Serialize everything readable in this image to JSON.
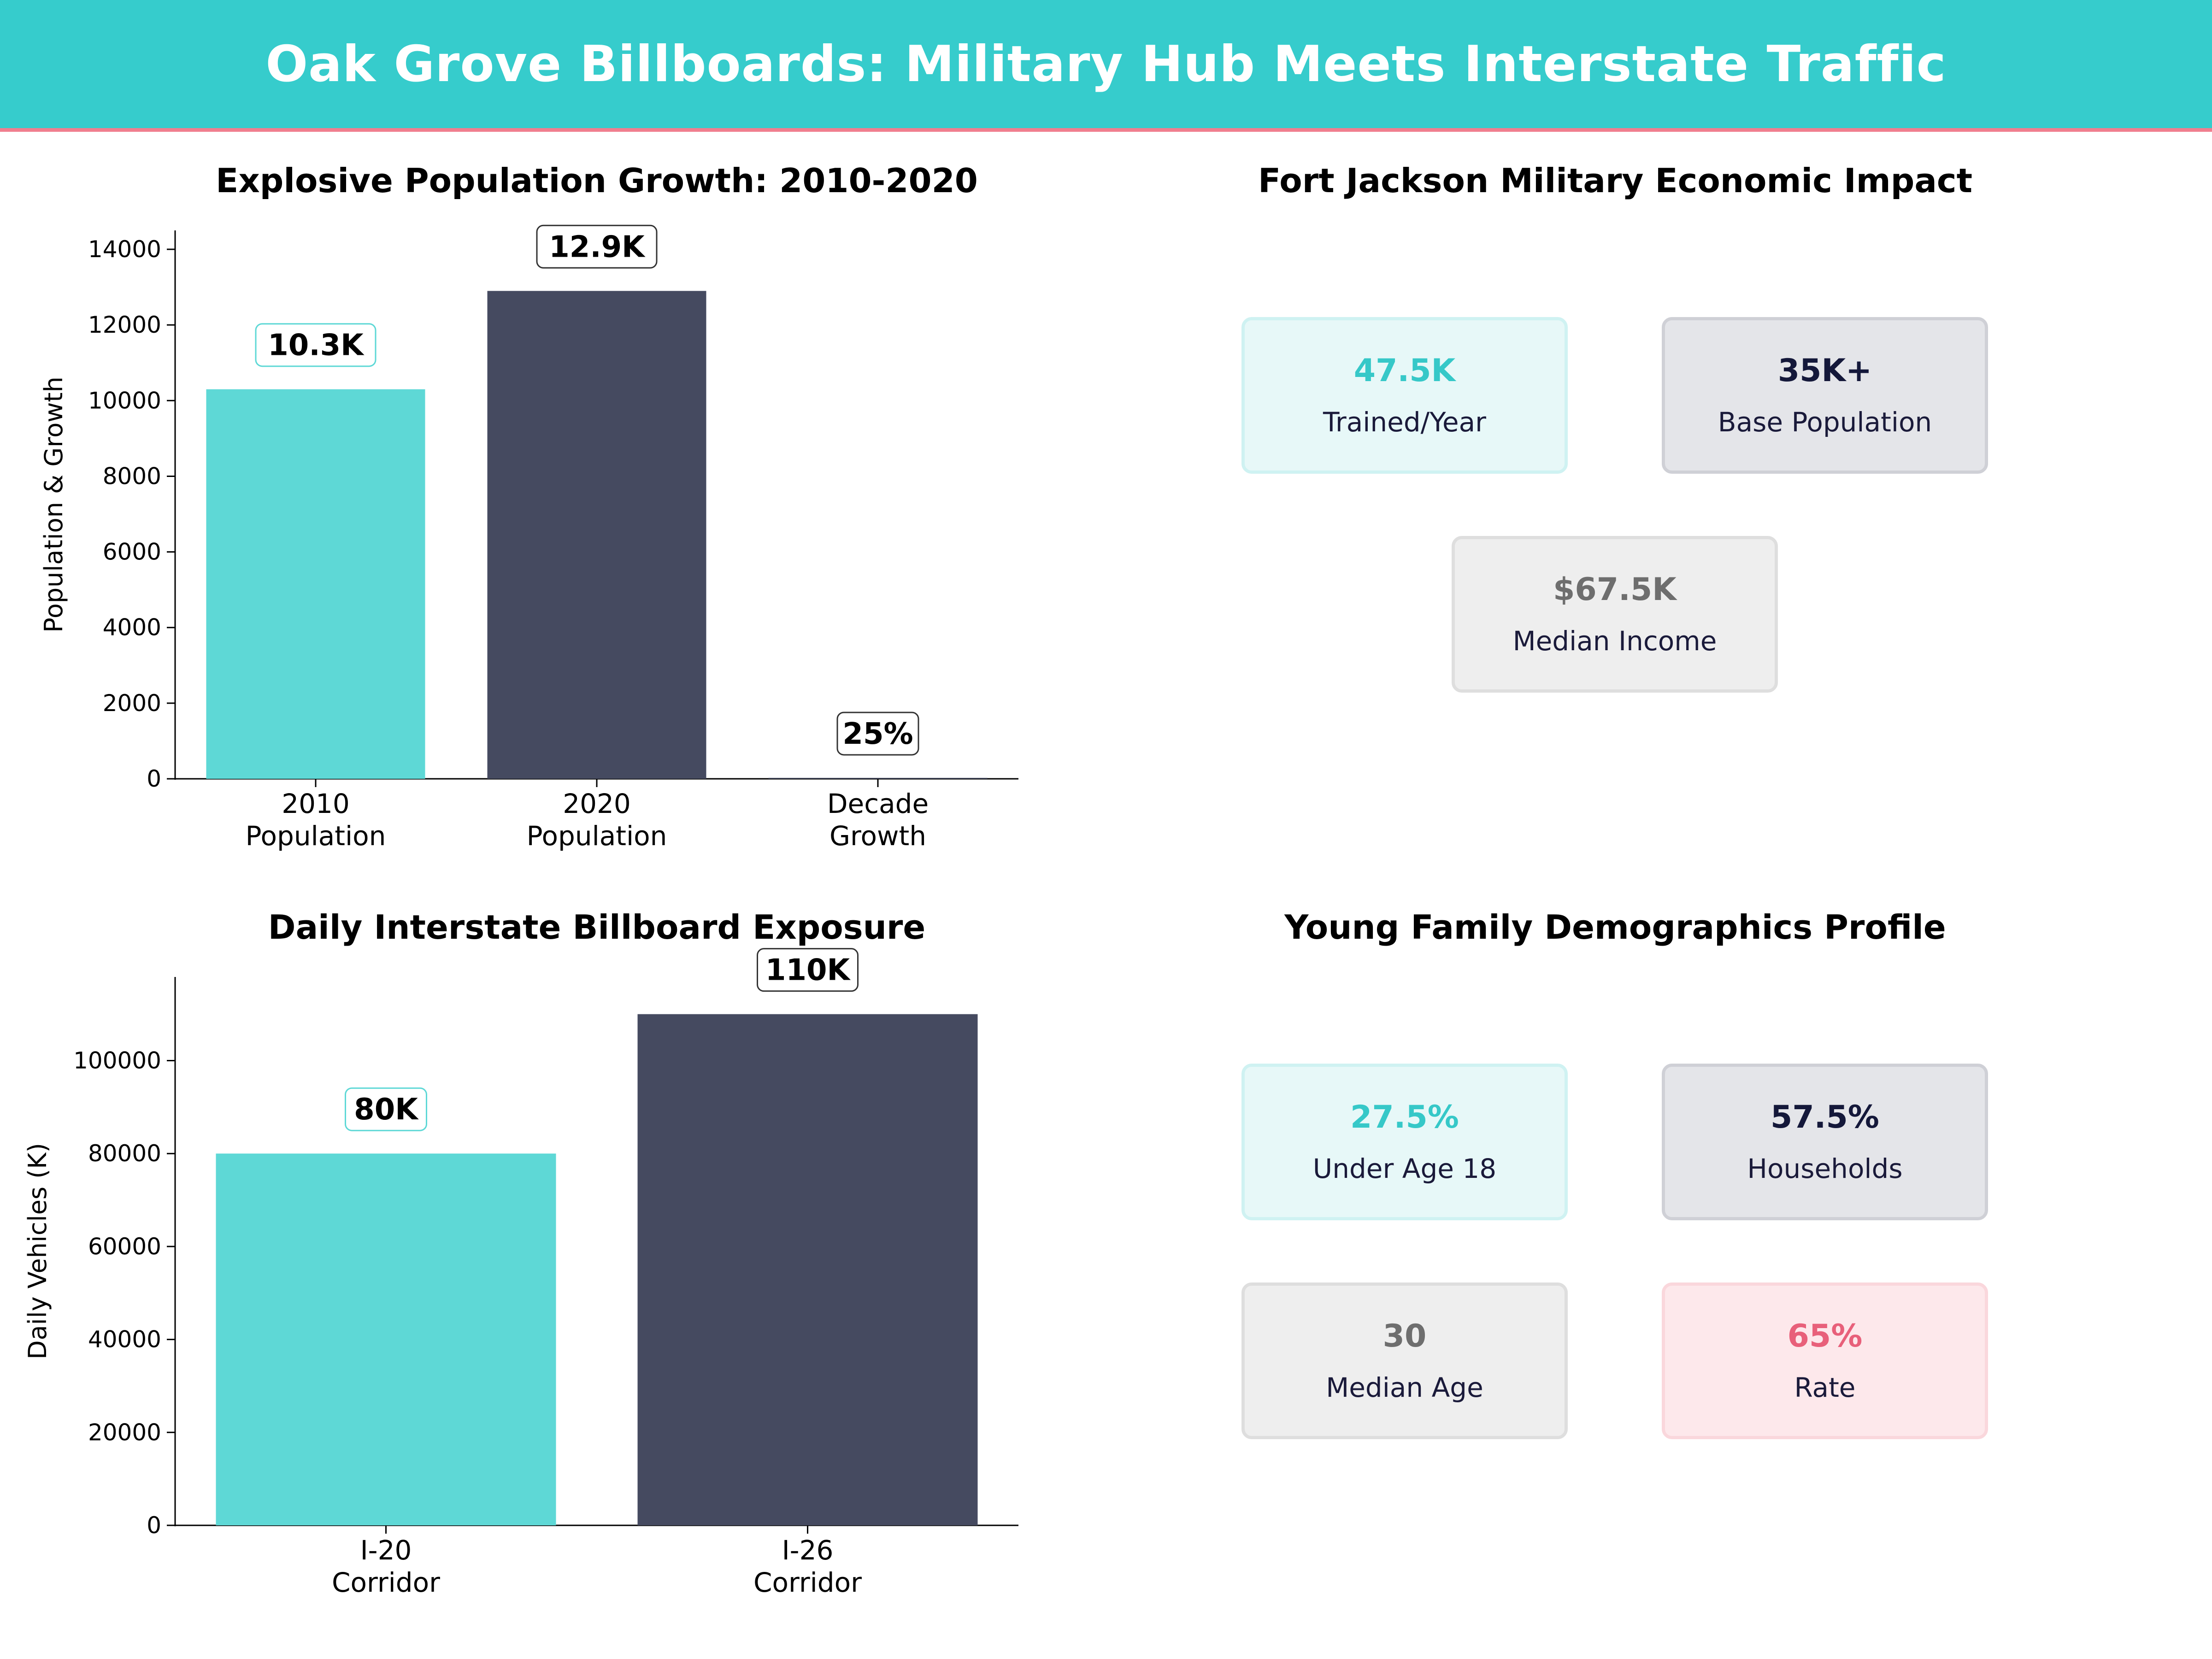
{
  "header": {
    "title": "Oak Grove Billboards: Military Hub Meets Interstate Traffic"
  },
  "colors": {
    "teal": "#5ED8D6",
    "navy": "#454A60",
    "header_bg": "#36CCCC",
    "accent_pink": "#F07E8E"
  },
  "chart_data": [
    {
      "type": "bar",
      "title": "Explosive Population Growth: 2010-2020",
      "ylabel": "Population & Growth",
      "xlabel": "",
      "categories": [
        [
          "2010",
          "Population"
        ],
        [
          "2020",
          "Population"
        ],
        [
          "Decade",
          "Growth"
        ]
      ],
      "values": [
        10300,
        12900,
        25
      ],
      "data_labels": [
        "10.3K",
        "12.9K",
        "25%"
      ],
      "ylim": [
        0,
        14500
      ],
      "yticks": [
        0,
        2000,
        4000,
        6000,
        8000,
        10000,
        12000,
        14000
      ],
      "ytick_labels": [
        "0",
        "2000",
        "4000",
        "6000",
        "8000",
        "10000",
        "12000",
        "14000"
      ],
      "grid": false
    },
    {
      "type": "bar",
      "title": "Daily Interstate Billboard Exposure",
      "ylabel": "Daily Vehicles (K)",
      "xlabel": "",
      "categories": [
        [
          "I-20",
          "Corridor"
        ],
        [
          "I-26",
          "Corridor"
        ]
      ],
      "values": [
        80000,
        110000
      ],
      "data_labels": [
        "80K",
        "110K"
      ],
      "ylim": [
        0,
        118000
      ],
      "yticks": [
        0,
        20000,
        40000,
        60000,
        80000,
        100000
      ],
      "ytick_labels": [
        "0",
        "20000",
        "40000",
        "60000",
        "80000",
        "100000"
      ],
      "grid": false
    }
  ],
  "military": {
    "title": "Fort Jackson Military Economic Impact",
    "cards": [
      {
        "value": "47.5K",
        "label": "Trained/Year",
        "style": "teal"
      },
      {
        "value": "35K+",
        "label": "Base Population",
        "style": "navy"
      },
      {
        "value": "$67.5K",
        "label": "Median Income",
        "style": "gray"
      }
    ]
  },
  "demographics": {
    "title": "Young Family Demographics Profile",
    "cards": [
      {
        "value": "27.5%",
        "label": "Under Age 18",
        "style": "teal"
      },
      {
        "value": "57.5%",
        "label": "Households",
        "style": "navy"
      },
      {
        "value": "30",
        "label": "Median Age",
        "style": "gray"
      },
      {
        "value": "65%",
        "label": "Rate",
        "style": "pink"
      }
    ]
  }
}
